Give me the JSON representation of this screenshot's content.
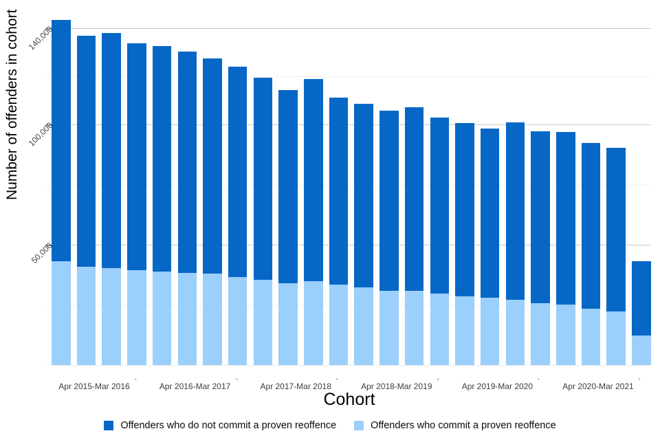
{
  "chart": {
    "y_axis_title": "Number of offenders in cohort",
    "x_axis_title": "Cohort",
    "legend": [
      {
        "label": "Offenders who do not commit a proven reoffence",
        "color": "#0667c6"
      },
      {
        "label": "Offenders who commit a proven reoffence",
        "color": "#9bcffc"
      }
    ]
  },
  "chart_data": {
    "type": "bar",
    "stacked": true,
    "title": "",
    "xlabel": "Cohort",
    "ylabel": "Number of offenders in cohort",
    "ylim": [
      0,
      147000
    ],
    "grid": true,
    "legend_position": "bottom",
    "y_ticks_labeled": [
      {
        "value": 50000,
        "label": "50,000"
      },
      {
        "value": 100000,
        "label": "100,000"
      },
      {
        "value": 140000,
        "label": "140,000"
      }
    ],
    "y_ticks_minor": [
      25000,
      75000,
      120000
    ],
    "x_group_labels": [
      "Apr 2015-Mar 2016",
      "Apr 2016-Mar 2017",
      "Apr 2017-Mar 2018",
      "Apr 2018-Mar 2019",
      "Apr 2019-Mar 2020",
      "Apr 2020-Mar 2021"
    ],
    "x_group_tick_glyph": "'",
    "bars_per_group": 4,
    "series": [
      {
        "name": "Offenders who do not commit a proven reoffence",
        "color": "#0667c6",
        "values": [
          100300,
          96000,
          97700,
          94300,
          93700,
          92000,
          89400,
          87400,
          84000,
          80300,
          84000,
          77700,
          76300,
          74800,
          76200,
          73200,
          72000,
          70300,
          73800,
          71400,
          71800,
          68900,
          68000,
          30800
        ]
      },
      {
        "name": "Offenders who commit a proven reoffence",
        "color": "#9bcffc",
        "values": [
          43100,
          40900,
          40300,
          39400,
          38900,
          38300,
          38000,
          36600,
          35400,
          34000,
          34900,
          33400,
          32300,
          30900,
          30900,
          29700,
          28600,
          28000,
          27100,
          25700,
          25100,
          23400,
          22300,
          12300
        ]
      }
    ]
  }
}
